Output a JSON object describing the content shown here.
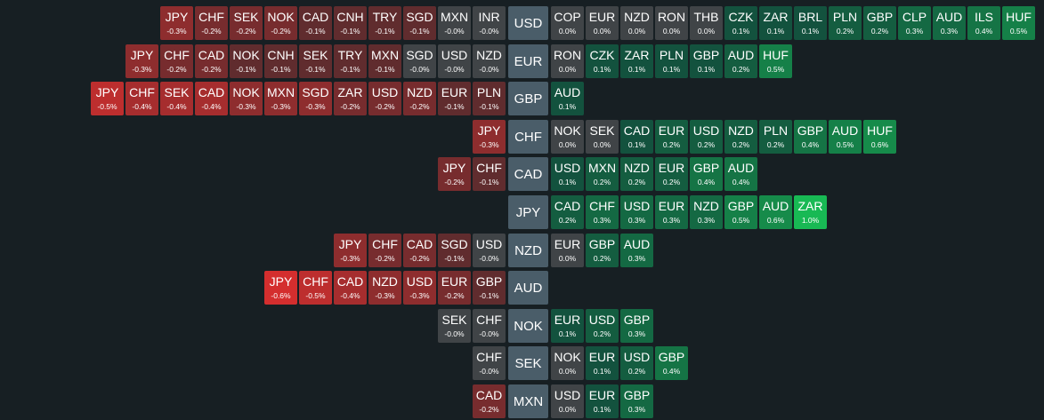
{
  "rows": [
    {
      "base": "USD",
      "left": [
        [
          "JPY",
          "-0.3%"
        ],
        [
          "CHF",
          "-0.2%"
        ],
        [
          "SEK",
          "-0.2%"
        ],
        [
          "NOK",
          "-0.2%"
        ],
        [
          "CAD",
          "-0.1%"
        ],
        [
          "CNH",
          "-0.1%"
        ],
        [
          "TRY",
          "-0.1%"
        ],
        [
          "SGD",
          "-0.1%"
        ],
        [
          "MXN",
          "-0.0%"
        ],
        [
          "INR",
          "-0.0%"
        ]
      ],
      "right": [
        [
          "COP",
          "0.0%"
        ],
        [
          "EUR",
          "0.0%"
        ],
        [
          "NZD",
          "0.0%"
        ],
        [
          "RON",
          "0.0%"
        ],
        [
          "THB",
          "0.0%"
        ],
        [
          "CZK",
          "0.1%"
        ],
        [
          "ZAR",
          "0.1%"
        ],
        [
          "BRL",
          "0.1%"
        ],
        [
          "PLN",
          "0.2%"
        ],
        [
          "GBP",
          "0.2%"
        ],
        [
          "CLP",
          "0.3%"
        ],
        [
          "AUD",
          "0.3%"
        ],
        [
          "ILS",
          "0.4%"
        ],
        [
          "HUF",
          "0.5%"
        ]
      ]
    },
    {
      "base": "EUR",
      "left": [
        [
          "JPY",
          "-0.3%"
        ],
        [
          "CHF",
          "-0.2%"
        ],
        [
          "CAD",
          "-0.2%"
        ],
        [
          "NOK",
          "-0.1%"
        ],
        [
          "CNH",
          "-0.1%"
        ],
        [
          "SEK",
          "-0.1%"
        ],
        [
          "TRY",
          "-0.1%"
        ],
        [
          "MXN",
          "-0.1%"
        ],
        [
          "SGD",
          "-0.0%"
        ],
        [
          "USD",
          "-0.0%"
        ],
        [
          "NZD",
          "-0.0%"
        ]
      ],
      "right": [
        [
          "RON",
          "0.0%"
        ],
        [
          "CZK",
          "0.1%"
        ],
        [
          "ZAR",
          "0.1%"
        ],
        [
          "PLN",
          "0.1%"
        ],
        [
          "GBP",
          "0.1%"
        ],
        [
          "AUD",
          "0.2%"
        ],
        [
          "HUF",
          "0.5%"
        ]
      ]
    },
    {
      "base": "GBP",
      "left": [
        [
          "JPY",
          "-0.5%"
        ],
        [
          "CHF",
          "-0.4%"
        ],
        [
          "SEK",
          "-0.4%"
        ],
        [
          "CAD",
          "-0.4%"
        ],
        [
          "NOK",
          "-0.3%"
        ],
        [
          "MXN",
          "-0.3%"
        ],
        [
          "SGD",
          "-0.3%"
        ],
        [
          "ZAR",
          "-0.2%"
        ],
        [
          "USD",
          "-0.2%"
        ],
        [
          "NZD",
          "-0.2%"
        ],
        [
          "EUR",
          "-0.1%"
        ],
        [
          "PLN",
          "-0.1%"
        ]
      ],
      "right": [
        [
          "AUD",
          "0.1%"
        ]
      ]
    },
    {
      "base": "CHF",
      "left": [
        [
          "JPY",
          "-0.3%"
        ]
      ],
      "right": [
        [
          "NOK",
          "0.0%"
        ],
        [
          "SEK",
          "0.0%"
        ],
        [
          "CAD",
          "0.1%"
        ],
        [
          "EUR",
          "0.2%"
        ],
        [
          "USD",
          "0.2%"
        ],
        [
          "NZD",
          "0.2%"
        ],
        [
          "PLN",
          "0.2%"
        ],
        [
          "GBP",
          "0.4%"
        ],
        [
          "AUD",
          "0.5%"
        ],
        [
          "HUF",
          "0.6%"
        ]
      ]
    },
    {
      "base": "CAD",
      "left": [
        [
          "JPY",
          "-0.2%"
        ],
        [
          "CHF",
          "-0.1%"
        ]
      ],
      "right": [
        [
          "USD",
          "0.1%"
        ],
        [
          "MXN",
          "0.2%"
        ],
        [
          "NZD",
          "0.2%"
        ],
        [
          "EUR",
          "0.2%"
        ],
        [
          "GBP",
          "0.4%"
        ],
        [
          "AUD",
          "0.4%"
        ]
      ]
    },
    {
      "base": "JPY",
      "left": [],
      "right": [
        [
          "CAD",
          "0.2%"
        ],
        [
          "CHF",
          "0.3%"
        ],
        [
          "USD",
          "0.3%"
        ],
        [
          "EUR",
          "0.3%"
        ],
        [
          "NZD",
          "0.3%"
        ],
        [
          "GBP",
          "0.5%"
        ],
        [
          "AUD",
          "0.6%"
        ],
        [
          "ZAR",
          "1.0%"
        ]
      ]
    },
    {
      "base": "NZD",
      "left": [
        [
          "JPY",
          "-0.3%"
        ],
        [
          "CHF",
          "-0.2%"
        ],
        [
          "CAD",
          "-0.2%"
        ],
        [
          "SGD",
          "-0.1%"
        ],
        [
          "USD",
          "-0.0%"
        ]
      ],
      "right": [
        [
          "EUR",
          "0.0%"
        ],
        [
          "GBP",
          "0.2%"
        ],
        [
          "AUD",
          "0.3%"
        ]
      ]
    },
    {
      "base": "AUD",
      "left": [
        [
          "JPY",
          "-0.6%"
        ],
        [
          "CHF",
          "-0.5%"
        ],
        [
          "CAD",
          "-0.4%"
        ],
        [
          "NZD",
          "-0.3%"
        ],
        [
          "USD",
          "-0.3%"
        ],
        [
          "EUR",
          "-0.2%"
        ],
        [
          "GBP",
          "-0.1%"
        ]
      ],
      "right": []
    },
    {
      "base": "NOK",
      "left": [
        [
          "SEK",
          "-0.0%"
        ],
        [
          "CHF",
          "-0.0%"
        ]
      ],
      "right": [
        [
          "EUR",
          "0.1%"
        ],
        [
          "USD",
          "0.2%"
        ],
        [
          "GBP",
          "0.3%"
        ]
      ]
    },
    {
      "base": "SEK",
      "left": [
        [
          "CHF",
          "-0.0%"
        ]
      ],
      "right": [
        [
          "NOK",
          "0.0%"
        ],
        [
          "EUR",
          "0.1%"
        ],
        [
          "USD",
          "0.2%"
        ],
        [
          "GBP",
          "0.4%"
        ]
      ]
    },
    {
      "base": "MXN",
      "left": [
        [
          "CAD",
          "-0.2%"
        ]
      ],
      "right": [
        [
          "USD",
          "0.0%"
        ],
        [
          "EUR",
          "0.1%"
        ],
        [
          "GBP",
          "0.3%"
        ]
      ]
    }
  ]
}
